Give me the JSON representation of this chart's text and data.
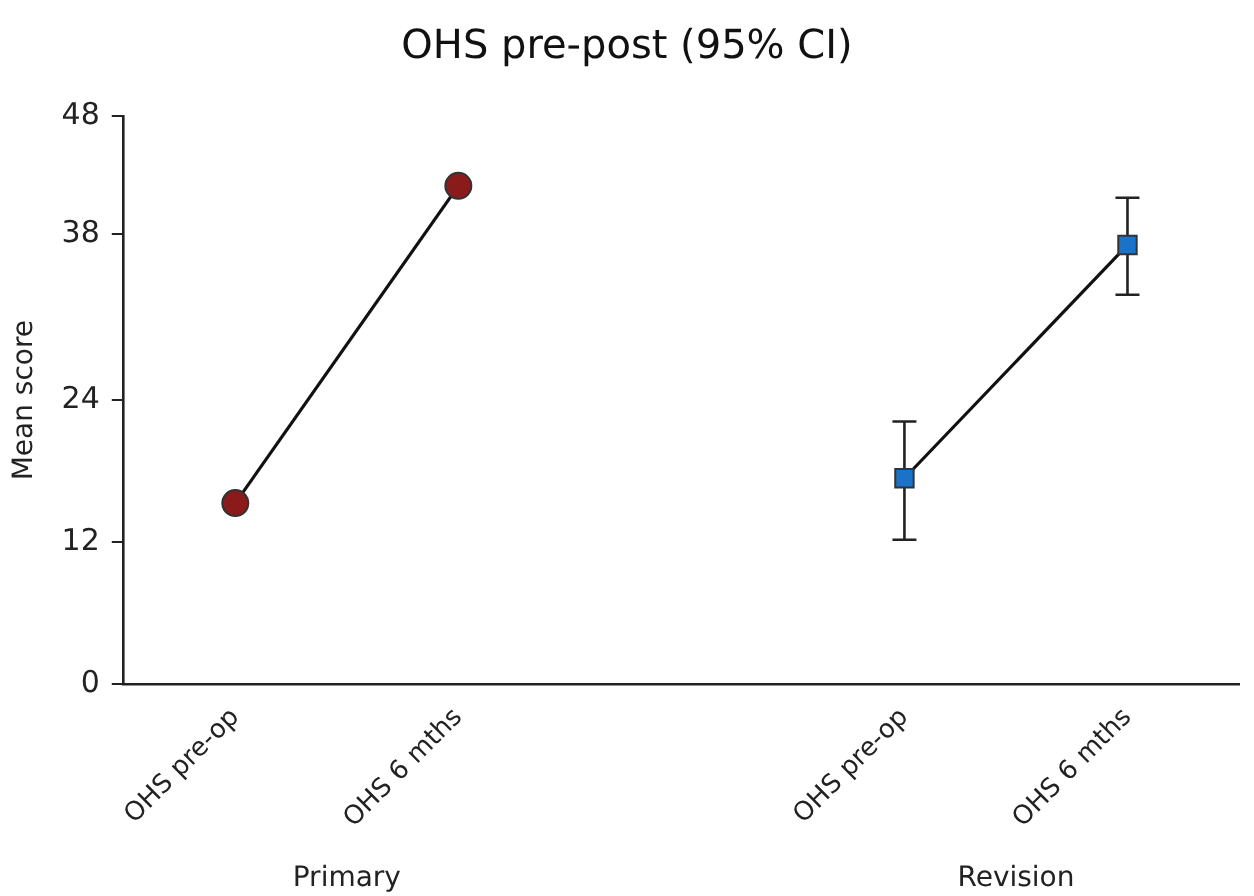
{
  "chart_data": {
    "type": "line",
    "title": "OHS pre-post (95% CI)",
    "ylabel": "Mean score",
    "categories": [
      "OHS pre-op",
      "OHS 6 mths",
      null,
      "OHS pre-op",
      "OHS 6 mths"
    ],
    "series": [
      {
        "color": "#8b1a1a",
        "marker": "circle",
        "values": [
          15.3,
          42.1,
          null,
          null,
          null
        ]
      },
      {
        "color": "#1a73c8",
        "marker": "square",
        "values": [
          null,
          null,
          null,
          17.4,
          37.1
        ],
        "errors": [
          null,
          null,
          null,
          [
            12.2,
            22.2
          ],
          [
            32.9,
            41.1
          ]
        ]
      }
    ],
    "ylim": [
      0,
      48
    ],
    "yticks": [
      0,
      12,
      24,
      38,
      48
    ],
    "grid": false,
    "legend": false,
    "annotations": [
      {
        "text": "Primary"
      },
      {
        "text": "Revision"
      }
    ]
  }
}
